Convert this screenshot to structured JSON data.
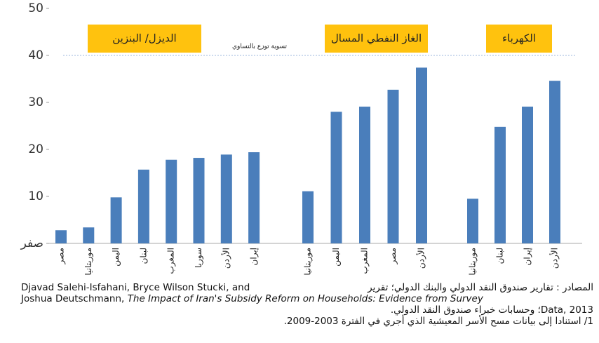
{
  "chart_data": {
    "type": "grouped_bar",
    "color": "#4a7ebb",
    "ylim": [
      0,
      50
    ],
    "yticks": [
      {
        "value": 0,
        "label": "صفر"
      },
      10,
      20,
      30,
      40,
      50
    ],
    "reference_line": {
      "value": 40,
      "label": "تسوية توزع بالتساوي"
    },
    "groups": [
      {
        "name": "الديزل/ البنزين",
        "categories": [
          "مصر",
          "موريتانيا",
          "اليمن",
          "لبنان",
          "المغرب",
          "سوريا",
          "الأردن",
          "إيران"
        ],
        "values": [
          2.8,
          3.4,
          9.8,
          15.7,
          17.8,
          18.2,
          18.9,
          19.4
        ]
      },
      {
        "name": "الغاز النفطي المسال",
        "categories": [
          "موريتانيا",
          "اليمن",
          "المغرب",
          "مصر",
          "الأردن"
        ],
        "values": [
          11.1,
          28,
          29.1,
          32.7,
          37.4
        ]
      },
      {
        "name": "الكهرباء",
        "categories": [
          "موريتانيا",
          "لبنان",
          "إيران",
          "الأردن"
        ],
        "values": [
          9.5,
          24.8,
          29.1,
          34.6
        ]
      }
    ]
  },
  "source": {
    "line1_en": "Djavad Salehi-Isfahani, Bryce Wilson Stucki, and",
    "line1_ar": "المصادر : تقارير صندوق النقد الدولي والبنك الدولي؛ تقرير",
    "line2_en": "Joshua Deutschmann, ",
    "line2_title": "The Impact of Iran's Subsidy Reform on Households: Evidence from Survey",
    "line3": "Data, 2013؛ وحسابات خبراء صندوق النقد الدولي.",
    "note": "1/ استنادا إلى بيانات مسح الأسر المعيشية الذي أجري في الفترة 2003-2009."
  }
}
